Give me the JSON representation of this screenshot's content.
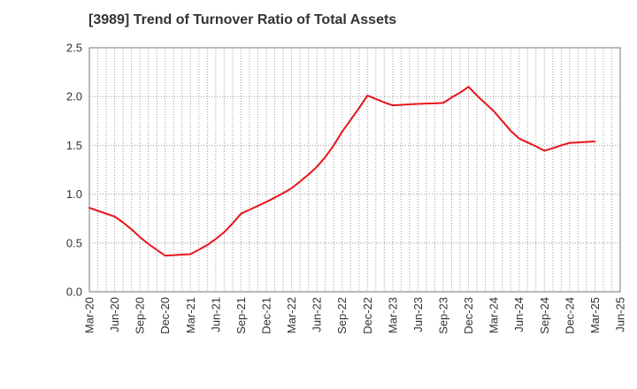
{
  "chart_data": {
    "type": "line",
    "title": "[3989]  Trend of Turnover Ratio of Total Assets",
    "xlabel": "",
    "ylabel": "",
    "categories": [
      "Mar-20",
      "Jun-20",
      "Sep-20",
      "Dec-20",
      "Mar-21",
      "Jun-21",
      "Sep-21",
      "Dec-21",
      "Mar-22",
      "Jun-22",
      "Sep-22",
      "Dec-22",
      "Mar-23",
      "Jun-23",
      "Sep-23",
      "Dec-23",
      "Mar-24",
      "Jun-24",
      "Sep-24",
      "Dec-24",
      "Mar-25",
      "Jun-25"
    ],
    "x_month_labels": [
      "Mar-20",
      "Jun-20",
      "Sep-20",
      "Dec-20",
      "Mar-21",
      "Jun-21",
      "Sep-21",
      "Dec-21",
      "Mar-22",
      "Jun-22",
      "Sep-22",
      "Dec-22",
      "Mar-23",
      "Jun-23",
      "Sep-23",
      "Dec-23",
      "Mar-24",
      "Jun-24",
      "Sep-24",
      "Dec-24",
      "Mar-25",
      "Jun-25"
    ],
    "series": [
      {
        "name": "",
        "color": "#e8141b",
        "points": [
          [
            "Mar-20",
            0.86
          ],
          [
            "Apr-20",
            0.83
          ],
          [
            "May-20",
            0.8
          ],
          [
            "Jun-20",
            0.77
          ],
          [
            "Jul-20",
            0.71
          ],
          [
            "Aug-20",
            0.64
          ],
          [
            "Sep-20",
            0.56
          ],
          [
            "Oct-20",
            0.49
          ],
          [
            "Nov-20",
            0.43
          ],
          [
            "Dec-20",
            0.37
          ],
          [
            "Jan-21",
            0.375
          ],
          [
            "Feb-21",
            0.38
          ],
          [
            "Mar-21",
            0.385
          ],
          [
            "Apr-21",
            0.43
          ],
          [
            "May-21",
            0.48
          ],
          [
            "Jun-21",
            0.54
          ],
          [
            "Jul-21",
            0.61
          ],
          [
            "Aug-21",
            0.7
          ],
          [
            "Sep-21",
            0.8
          ],
          [
            "Oct-21",
            0.84
          ],
          [
            "Nov-21",
            0.88
          ],
          [
            "Dec-21",
            0.92
          ],
          [
            "Jan-22",
            0.965
          ],
          [
            "Feb-22",
            1.01
          ],
          [
            "Mar-22",
            1.06
          ],
          [
            "Apr-22",
            1.13
          ],
          [
            "May-22",
            1.2
          ],
          [
            "Jun-22",
            1.28
          ],
          [
            "Jul-22",
            1.38
          ],
          [
            "Aug-22",
            1.5
          ],
          [
            "Sep-22",
            1.64
          ],
          [
            "Oct-22",
            1.76
          ],
          [
            "Nov-22",
            1.88
          ],
          [
            "Dec-22",
            2.01
          ],
          [
            "Jan-23",
            1.975
          ],
          [
            "Feb-23",
            1.94
          ],
          [
            "Mar-23",
            1.91
          ],
          [
            "Apr-23",
            1.915
          ],
          [
            "May-23",
            1.92
          ],
          [
            "Jun-23",
            1.925
          ],
          [
            "Jul-23",
            1.928
          ],
          [
            "Aug-23",
            1.93
          ],
          [
            "Sep-23",
            1.935
          ],
          [
            "Oct-23",
            1.99
          ],
          [
            "Nov-23",
            2.04
          ],
          [
            "Dec-23",
            2.1
          ],
          [
            "Jan-24",
            2.01
          ],
          [
            "Feb-24",
            1.93
          ],
          [
            "Mar-24",
            1.85
          ],
          [
            "Apr-24",
            1.75
          ],
          [
            "May-24",
            1.65
          ],
          [
            "Jun-24",
            1.57
          ],
          [
            "Jul-24",
            1.53
          ],
          [
            "Aug-24",
            1.49
          ],
          [
            "Sep-24",
            1.445
          ],
          [
            "Oct-24",
            1.47
          ],
          [
            "Nov-24",
            1.5
          ],
          [
            "Dec-24",
            1.525
          ],
          [
            "Jan-25",
            1.53
          ],
          [
            "Feb-25",
            1.535
          ],
          [
            "Mar-25",
            1.54
          ]
        ]
      }
    ],
    "y_ticks": [
      "0.0",
      "0.5",
      "1.0",
      "1.5",
      "2.0",
      "2.5"
    ],
    "ylim": [
      0,
      2.5
    ],
    "xlim": [
      "Mar-20",
      "Jun-25"
    ],
    "grid": true,
    "grid_style": "dotted",
    "legend": "none"
  }
}
